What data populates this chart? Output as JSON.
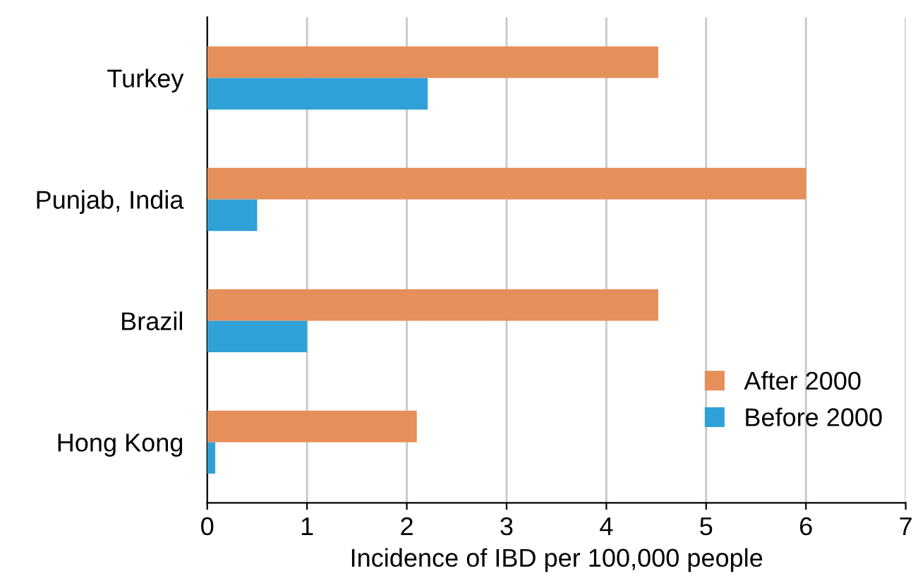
{
  "chart_data": {
    "type": "bar",
    "orientation": "horizontal",
    "xlabel": "Incidence of IBD per 100,000 people",
    "categories": [
      "Turkey",
      "Punjab, India",
      "Brazil",
      "Hong Kong"
    ],
    "series": [
      {
        "name": "After 2000",
        "color": "#e58f5a",
        "values": [
          4.52,
          6.0,
          4.52,
          2.1
        ]
      },
      {
        "name": "Before 2000",
        "color": "#2fa1d6",
        "values": [
          2.21,
          0.5,
          1.0,
          0.08
        ]
      }
    ],
    "xlim": [
      0,
      7
    ],
    "xticks": [
      0,
      1,
      2,
      3,
      4,
      5,
      6,
      7
    ],
    "grid": "x",
    "legend": "bottom right"
  }
}
